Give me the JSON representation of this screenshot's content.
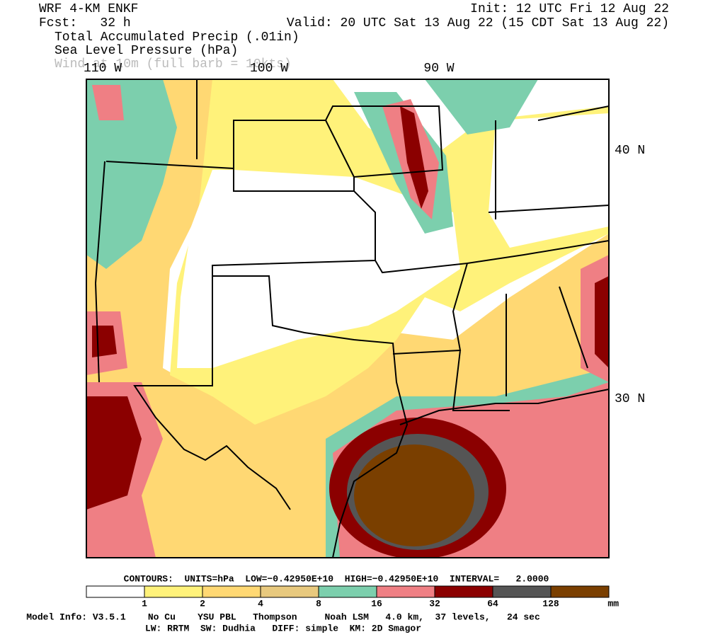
{
  "header": {
    "model": "WRF 4-KM ENKF",
    "forecast": "Fcst:   32 h",
    "fields": [
      "Total Accumulated Precip (.01in)",
      "Sea Level Pressure (hPa)",
      "Wind at 10m (full barb = 10kts)"
    ],
    "init": "Init: 12 UTC Fri 12 Aug 22",
    "valid": "Valid: 20 UTC Sat 13 Aug 22 (15 CDT Sat 13 Aug 22)"
  },
  "map": {
    "longitudes": [
      "110 W",
      "100 W",
      "90 W"
    ],
    "latitudes": [
      "40 N",
      "30 N"
    ]
  },
  "contours": "CONTOURS:  UNITS=hPa  LOW=−0.42950E+10  HIGH=−0.42950E+10  INTERVAL=   2.0000",
  "colorbar": {
    "colors": [
      "#ffffff",
      "#fff27a",
      "#ffd873",
      "#e8c97e",
      "#7ccfad",
      "#ef7f84",
      "#8b0000",
      "#555555",
      "#7a3f00"
    ],
    "thresholds": [
      1,
      2,
      4,
      8,
      16,
      32,
      64,
      128
    ],
    "unit": "mm"
  },
  "footer": [
    "Model Info: V3.5.1    No Cu    YSU PBL   Thompson     Noah LSM   4.0 km,  37 levels,   24 sec",
    "LW: RRTM  SW: Dudhia   DIFF: simple  KM: 2D Smagor"
  ]
}
